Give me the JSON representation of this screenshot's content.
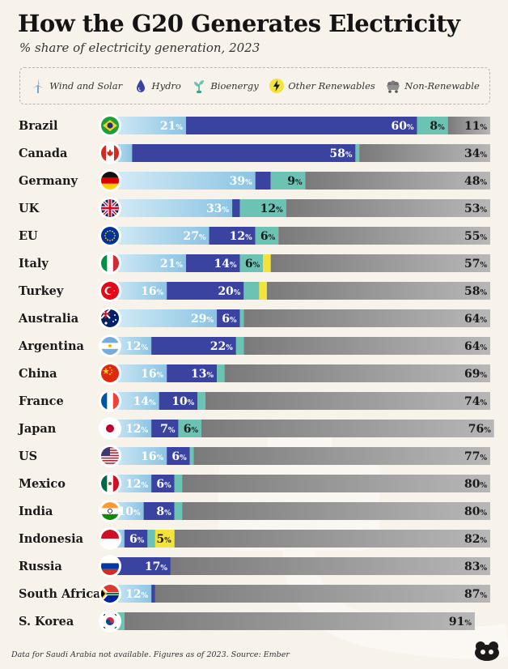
{
  "header": {
    "title": "How the G20 Generates Electricity",
    "subtitle": "% share of electricity generation, 2023"
  },
  "legend": [
    {
      "label": "Wind and Solar",
      "icon": "wind-turbine-icon",
      "color": "#a6d3ea"
    },
    {
      "label": "Hydro",
      "icon": "water-drop-icon",
      "color": "#3a43a0"
    },
    {
      "label": "Bioenergy",
      "icon": "plant-icon",
      "color": "#6cc3b3"
    },
    {
      "label": "Other Renewables",
      "icon": "lightning-icon",
      "color": "#f3e33a"
    },
    {
      "label": "Non-Renewable",
      "icon": "coal-cart-icon",
      "color": "#8f8f8f"
    }
  ],
  "footer": "Data for Saudi Arabia not available. Figures as of 2023. Source: Ember",
  "chart_data": {
    "type": "bar",
    "stacked": true,
    "orientation": "horizontal",
    "unit": "%",
    "categories": [
      "Brazil",
      "Canada",
      "Germany",
      "UK",
      "EU",
      "Italy",
      "Turkey",
      "Australia",
      "Argentina",
      "China",
      "France",
      "Japan",
      "US",
      "Mexico",
      "India",
      "Indonesia",
      "Russia",
      "South Africa",
      "S. Korea"
    ],
    "series": [
      {
        "name": "Wind and Solar",
        "color": "#a6d3ea",
        "values": [
          21,
          0,
          39,
          33,
          27,
          21,
          16,
          29,
          12,
          16,
          14,
          12,
          16,
          12,
          10,
          0,
          0,
          12,
          0
        ]
      },
      {
        "name": "Hydro",
        "color": "#3a43a0",
        "values": [
          60,
          58,
          0,
          0,
          12,
          14,
          20,
          6,
          22,
          13,
          10,
          7,
          6,
          6,
          8,
          6,
          17,
          0,
          0
        ]
      },
      {
        "name": "Bioenergy",
        "color": "#6cc3b3",
        "values": [
          8,
          0,
          9,
          12,
          6,
          6,
          0,
          0,
          0,
          0,
          0,
          6,
          0,
          0,
          0,
          0,
          0,
          0,
          0
        ]
      },
      {
        "name": "Other Renewables",
        "color": "#f3e33a",
        "values": [
          0,
          0,
          0,
          0,
          0,
          0,
          0,
          0,
          0,
          0,
          0,
          0,
          0,
          0,
          0,
          5,
          0,
          0,
          0
        ]
      },
      {
        "name": "Non-Renewable",
        "color": "#8f8f8f",
        "values": [
          11,
          34,
          48,
          53,
          55,
          57,
          58,
          64,
          64,
          69,
          74,
          76,
          77,
          80,
          80,
          82,
          83,
          87,
          91
        ]
      }
    ],
    "unlabeled_fill": [
      [
        0,
        0,
        0,
        0,
        0
      ],
      [
        7,
        0,
        1,
        0,
        0
      ],
      [
        0,
        4,
        0,
        0,
        0
      ],
      [
        0,
        2,
        0,
        0,
        0
      ],
      [
        0,
        0,
        0,
        0,
        0
      ],
      [
        0,
        0,
        0,
        2,
        0
      ],
      [
        0,
        0,
        4,
        2,
        0
      ],
      [
        0,
        0,
        1,
        0,
        0
      ],
      [
        0,
        0,
        2,
        0,
        0
      ],
      [
        0,
        0,
        2,
        0,
        0
      ],
      [
        0,
        0,
        2,
        0,
        0
      ],
      [
        0,
        0,
        0,
        0,
        0
      ],
      [
        0,
        0,
        1,
        0,
        0
      ],
      [
        0,
        0,
        2,
        0,
        0
      ],
      [
        0,
        0,
        2,
        0,
        0
      ],
      [
        5,
        0,
        2,
        0,
        0
      ],
      [
        0,
        0,
        0,
        0,
        0
      ],
      [
        0,
        1,
        0,
        0,
        0
      ],
      [
        1,
        1,
        3,
        0,
        0
      ]
    ],
    "xlim": [
      0,
      100
    ]
  }
}
